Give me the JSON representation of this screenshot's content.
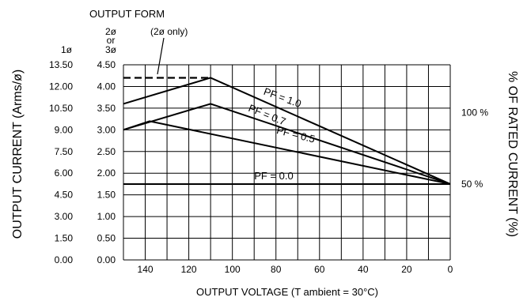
{
  "chart_data": {
    "type": "line",
    "title": "",
    "output_form_label": "OUTPUT FORM",
    "col_1phase_label": "1ø",
    "col_23phase_label_lines": [
      "2ø",
      "or",
      "3ø"
    ],
    "two_phase_only_note": "(2ø only)",
    "xlabel": "OUTPUT VOLTAGE (T ambient = 30°C)",
    "ylabel_left": "OUTPUT CURRENT (Arms/ø)",
    "ylabel_right": "% OF RATED CURRENT (%)",
    "xlim": [
      150,
      0
    ],
    "ylim": [
      0,
      4.5
    ],
    "grid": true,
    "x_ticks": [
      140,
      120,
      100,
      80,
      60,
      40,
      20,
      0
    ],
    "x_tick_labels": [
      "140",
      "120",
      "100",
      "80",
      "60",
      "40",
      "20",
      "0"
    ],
    "y_ticks_23phase": [
      "0.00",
      "0.50",
      "1.00",
      "1.50",
      "2.00",
      "2.50",
      "3.00",
      "3.50",
      "4.00",
      "4.50"
    ],
    "y_ticks_1phase": [
      "0.00",
      "1.50",
      "3.00",
      "4.50",
      "6.00",
      "7.50",
      "9.00",
      "10.50",
      "12.00",
      "13.50"
    ],
    "right_annotations": [
      {
        "label": "100 %",
        "y": 3.4
      },
      {
        "label": "50 %",
        "y": 1.75
      }
    ],
    "series": [
      {
        "name": "PF = 1.0",
        "x": [
          150,
          110,
          0
        ],
        "y": [
          3.6,
          4.2,
          1.75
        ]
      },
      {
        "name": "PF = 0.7",
        "x": [
          150,
          110,
          0
        ],
        "y": [
          3.0,
          3.6,
          1.75
        ]
      },
      {
        "name": "PF = 0.5",
        "x": [
          150,
          138,
          0
        ],
        "y": [
          3.0,
          3.2,
          1.75
        ]
      },
      {
        "name": "PF = 0.0",
        "x": [
          150,
          0
        ],
        "y": [
          1.75,
          1.75
        ]
      }
    ],
    "dashed_line": {
      "x": [
        150,
        110
      ],
      "y": [
        4.2,
        4.2
      ]
    }
  }
}
